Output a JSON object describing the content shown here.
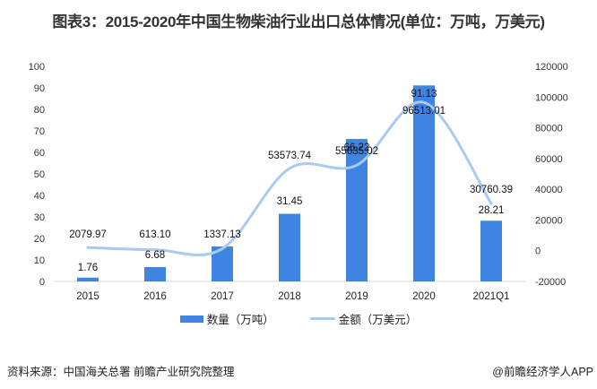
{
  "title": "图表3：2015-2020年中国生物柴油行业出口总体情况(单位：万吨，万美元)",
  "chart_data": {
    "type": "bar+line",
    "title": "图表3：2015-2020年中国生物柴油行业出口总体情况(单位：万吨，万美元)",
    "categories": [
      "2015",
      "2016",
      "2017",
      "2018",
      "2019",
      "2020",
      "2021Q1"
    ],
    "series": [
      {
        "name": "数量（万吨）",
        "type": "bar",
        "axis": "left",
        "color": "#3f84e0",
        "values": [
          1.76,
          6.68,
          16.25,
          31.45,
          66.22,
          91.13,
          28.21
        ],
        "labels": [
          "1.76",
          "6.68",
          "",
          "31.45",
          "66.22",
          "91.13",
          "28.21"
        ]
      },
      {
        "name": "金额（万美元）",
        "type": "line",
        "axis": "right",
        "color": "#a8cbf3",
        "values": [
          2079.97,
          613.1,
          1337.13,
          53573.74,
          55635.02,
          96513.01,
          30760.39
        ],
        "labels": [
          "2079.97",
          "613.10",
          "1337.13",
          "53573.74",
          "55635.02",
          "96513.01",
          "30760.39"
        ]
      }
    ],
    "left_axis": {
      "ticks": [
        "0",
        "10",
        "20",
        "30",
        "40",
        "50",
        "60",
        "70",
        "80",
        "90",
        "100"
      ],
      "ylim": [
        0,
        100
      ]
    },
    "right_axis": {
      "ticks": [
        "-20000",
        "0",
        "20000",
        "40000",
        "60000",
        "80000",
        "100000",
        "120000"
      ],
      "ylim": [
        -20000,
        120000
      ]
    },
    "legend_position": "bottom",
    "grid": false
  },
  "legend": {
    "bar_label": "数量（万吨）",
    "line_label": "金额（万美元）"
  },
  "footer": {
    "source": "资料来源：中国海关总署 前瞻产业研究院整理",
    "credit": "@前瞻经济学人APP"
  }
}
